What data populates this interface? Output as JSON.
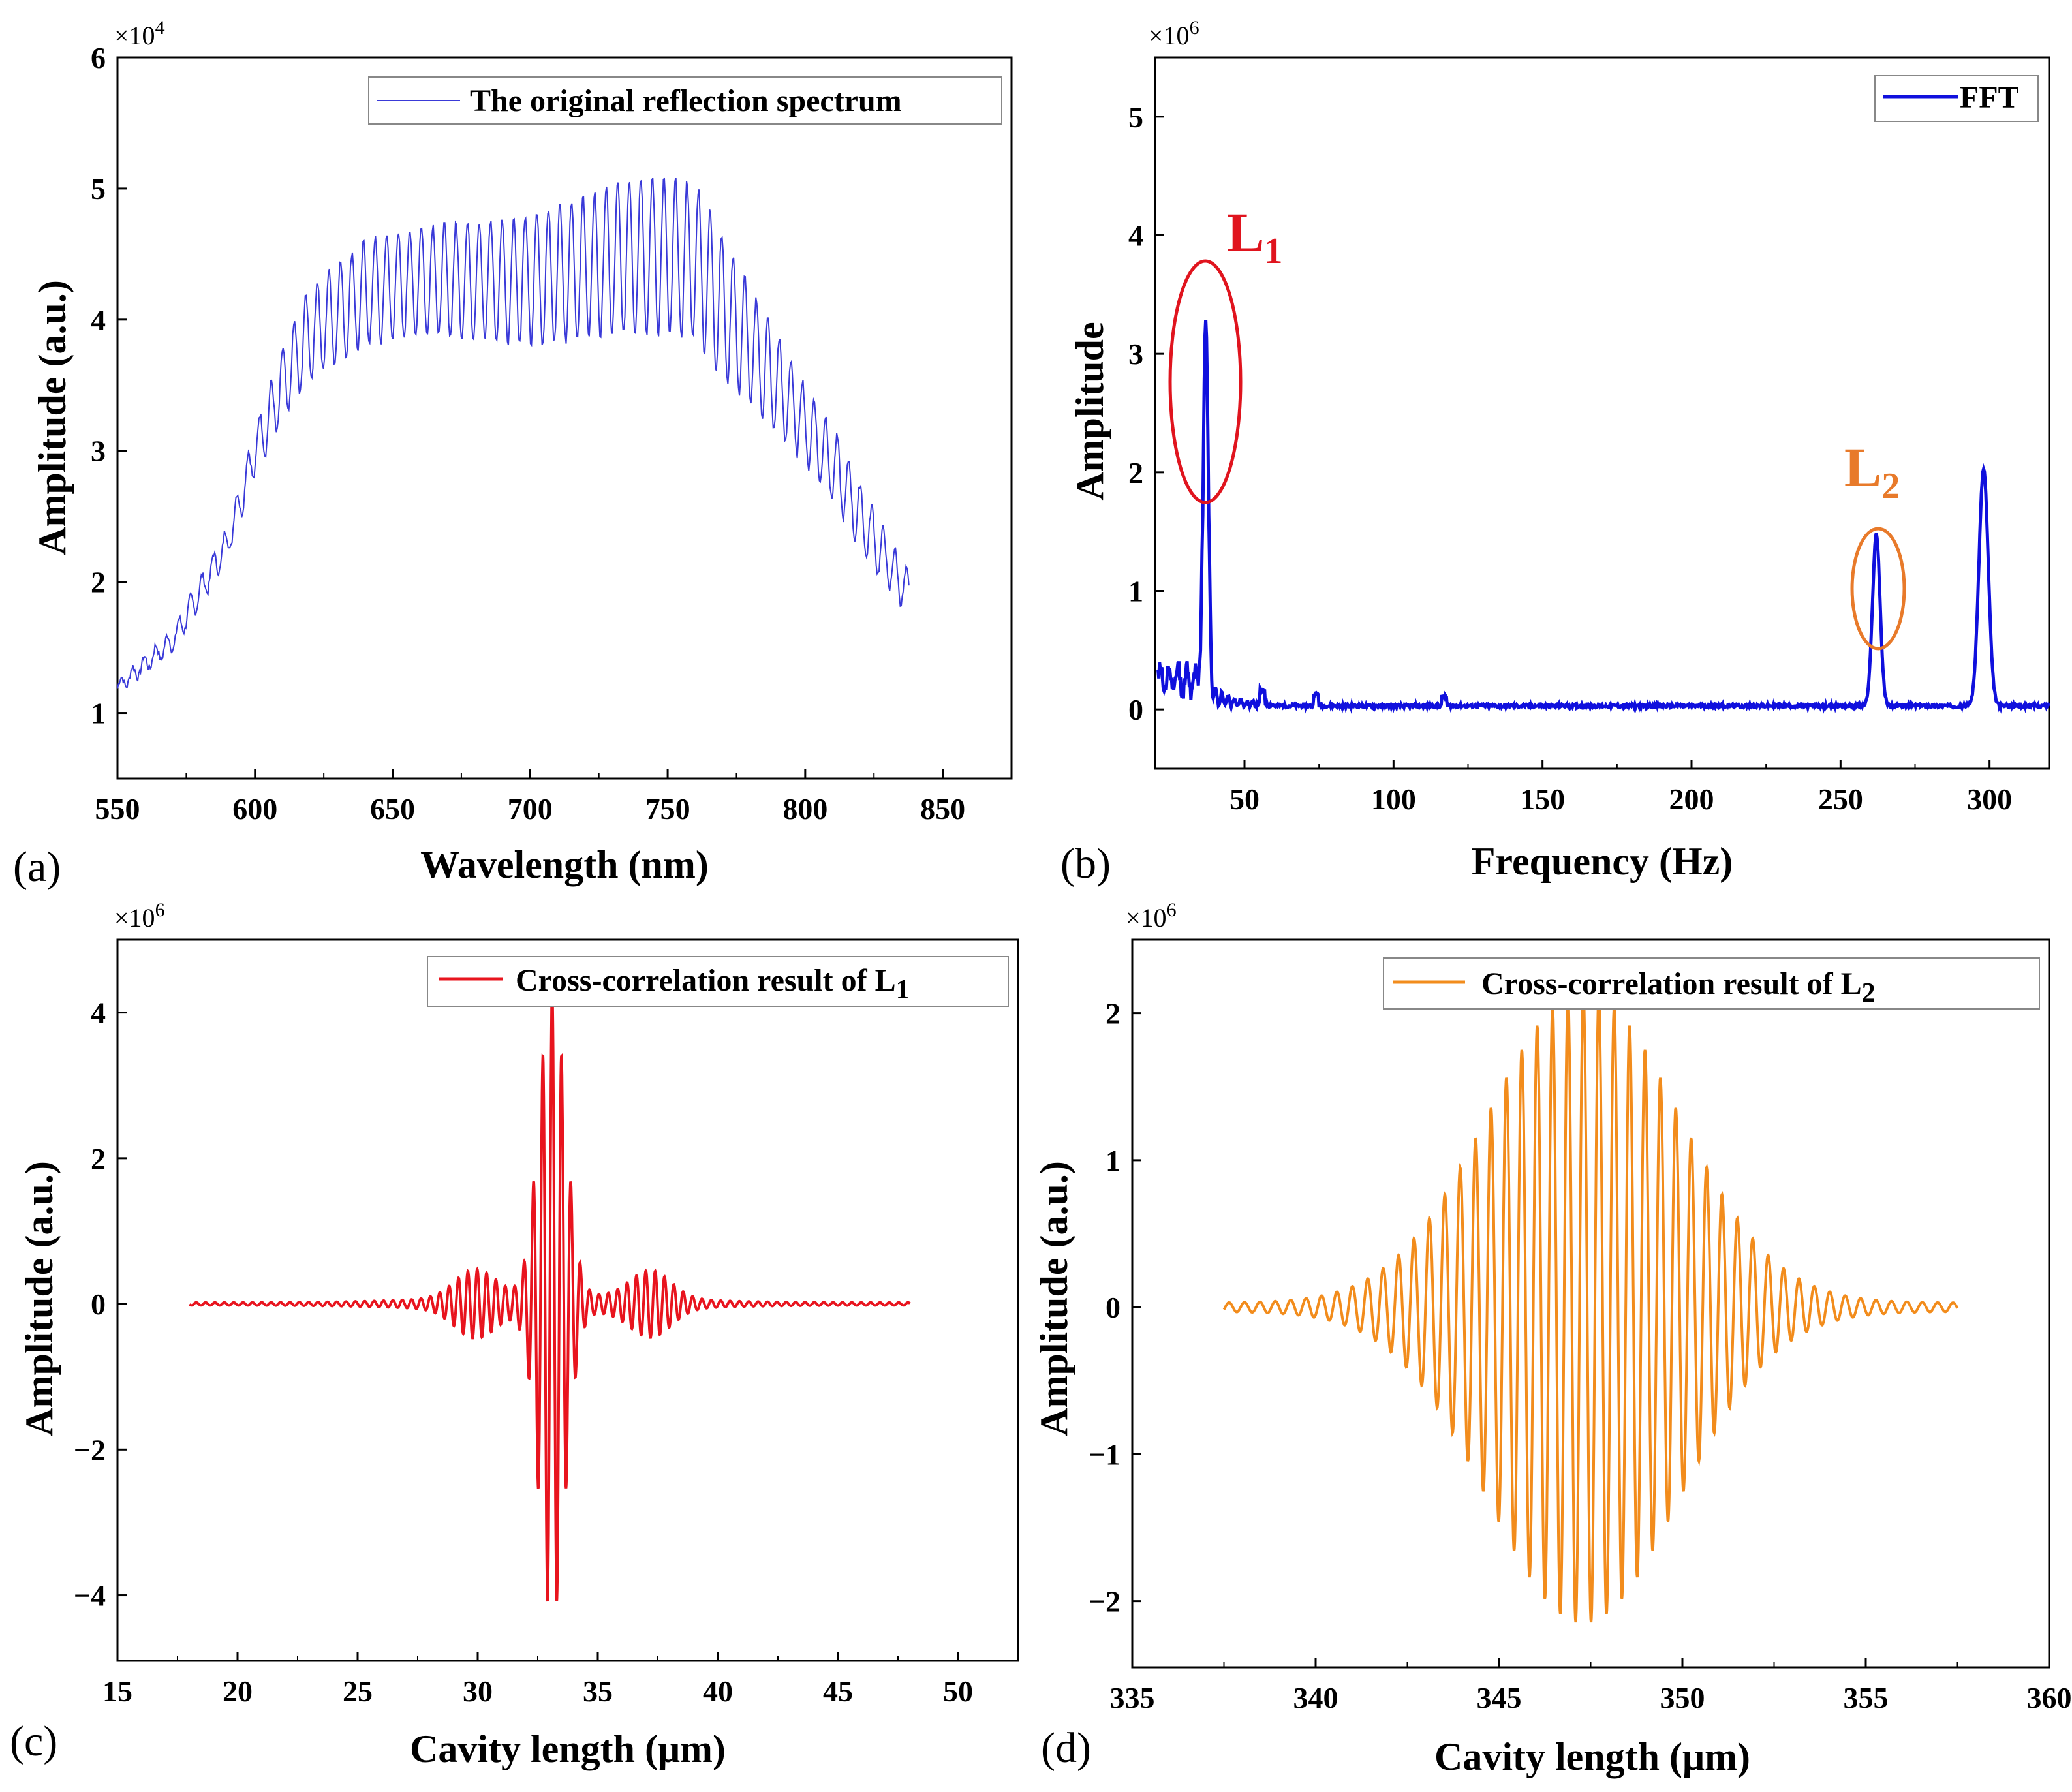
{
  "chart_data": [
    {
      "panel": "(a)",
      "type": "line",
      "color": "#3a3ad8",
      "multiplier": "×10",
      "multiplier_exp": "4",
      "xlabel": "Wavelength (nm)",
      "ylabel": "Amplitude (a.u.)",
      "xlim": [
        550,
        875
      ],
      "ylim": [
        0.5,
        6
      ],
      "xticks": [
        550,
        600,
        650,
        700,
        750,
        800,
        850
      ],
      "yticks": [
        1,
        2,
        3,
        4,
        5,
        6
      ],
      "legend": "The original reflection spectrum",
      "series": [
        {
          "name": "The original reflection spectrum",
          "x_range": [
            550,
            838
          ],
          "envelope_x": [
            550,
            570,
            590,
            600,
            610,
            620,
            640,
            660,
            680,
            700,
            720,
            740,
            760,
            770,
            780,
            790,
            800,
            810,
            820,
            830,
            838
          ],
          "envelope_y": [
            1.2,
            1.55,
            2.3,
            3.0,
            3.5,
            3.9,
            4.2,
            4.3,
            4.3,
            4.3,
            4.4,
            4.5,
            4.45,
            4.1,
            3.8,
            3.5,
            3.2,
            2.9,
            2.5,
            2.15,
            1.9
          ],
          "fringe_amplitude": [
            0.05,
            0.08,
            0.12,
            0.18,
            0.28,
            0.35,
            0.4,
            0.42,
            0.44,
            0.5,
            0.55,
            0.6,
            0.6,
            0.55,
            0.45,
            0.38,
            0.3,
            0.28,
            0.25,
            0.2,
            0.15
          ],
          "fringe_period_nm": 4.2
        }
      ]
    },
    {
      "panel": "(b)",
      "type": "line",
      "color": "#1010dd",
      "multiplier": "×10",
      "multiplier_exp": "6",
      "xlabel": "Frequency (Hz)",
      "ylabel": "Amplitude",
      "xlim": [
        20,
        320
      ],
      "ylim": [
        -0.5,
        5.5
      ],
      "xticks": [
        50,
        100,
        150,
        200,
        250,
        300
      ],
      "yticks": [
        0,
        1,
        2,
        3,
        4,
        5
      ],
      "legend": "FFT",
      "annotations": [
        {
          "label": "L",
          "sub": "1",
          "color": "#e0141e",
          "x": 37,
          "y": 2.75
        },
        {
          "label": "L",
          "sub": "2",
          "color": "#e87a2a",
          "x": 262,
          "y": 1.05
        }
      ],
      "peaks": [
        {
          "x": 37,
          "y": 3.25,
          "width": 1.2
        },
        {
          "x": 262,
          "y": 1.45,
          "width": 1.8
        },
        {
          "x": 298,
          "y": 2.0,
          "width": 2.2
        }
      ],
      "baseline": 0.03
    },
    {
      "panel": "(c)",
      "type": "line",
      "color": "#e8141e",
      "multiplier": "×10",
      "multiplier_exp": "6",
      "xlabel": "Cavity length (μm)",
      "ylabel": "Amplitude (a.u.)",
      "xlim": [
        15,
        52.5
      ],
      "ylim": [
        -4.9,
        5.0
      ],
      "xticks": [
        15,
        20,
        25,
        30,
        35,
        40,
        45,
        50
      ],
      "yticks": [
        -4,
        -2,
        0,
        2,
        4
      ],
      "legend": "Cross-correlation result of L",
      "legend_sub": "1",
      "series": [
        {
          "x_range": [
            18,
            48
          ],
          "center": 33.1,
          "peak": 4.22,
          "period": 0.39,
          "decay": 0.55,
          "side_center_1": 29.9,
          "side_center_2": 37.2,
          "side_amp": 0.38
        }
      ]
    },
    {
      "panel": "(d)",
      "type": "line",
      "color": "#f28c1c",
      "multiplier": "×10",
      "multiplier_exp": "6",
      "xlabel": "Cavity length (μm)",
      "ylabel": "Amplitude (a.u.)",
      "xlim": [
        335,
        360
      ],
      "ylim": [
        -2.45,
        2.5
      ],
      "xticks": [
        335,
        340,
        345,
        350,
        355,
        360
      ],
      "yticks": [
        -2,
        -1,
        0,
        1,
        2
      ],
      "legend": "Cross-correlation result of L",
      "legend_sub": "2",
      "series": [
        {
          "x_range": [
            337.5,
            357.5
          ],
          "center": 347.3,
          "peak": 2.12,
          "period": 0.42,
          "decay": 2.6
        }
      ]
    }
  ]
}
